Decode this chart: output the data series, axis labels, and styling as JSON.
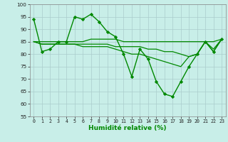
{
  "xlabel": "Humidité relative (%)",
  "bg_color": "#c8eee8",
  "grid_color": "#aacccc",
  "line_color": "#008800",
  "hours": [
    0,
    1,
    2,
    3,
    4,
    5,
    6,
    7,
    8,
    9,
    10,
    11,
    12,
    13,
    14,
    15,
    16,
    17,
    18,
    19,
    20,
    21,
    22,
    23
  ],
  "series_main": [
    94,
    81,
    82,
    85,
    85,
    95,
    94,
    96,
    93,
    89,
    87,
    80,
    71,
    82,
    78,
    69,
    64,
    63,
    69,
    75,
    80,
    85,
    81,
    86
  ],
  "series_avg1": [
    85,
    85,
    85,
    85,
    85,
    85,
    85,
    86,
    86,
    86,
    86,
    85,
    85,
    85,
    85,
    85,
    85,
    85,
    85,
    85,
    85,
    85,
    85,
    86
  ],
  "series_avg2": [
    85,
    84,
    84,
    84,
    84,
    84,
    84,
    84,
    84,
    84,
    83,
    83,
    83,
    83,
    82,
    82,
    81,
    81,
    80,
    79,
    80,
    85,
    82,
    86
  ],
  "series_avg3": [
    85,
    84,
    84,
    84,
    84,
    84,
    83,
    83,
    83,
    83,
    82,
    81,
    80,
    80,
    79,
    78,
    77,
    76,
    75,
    79,
    80,
    85,
    81,
    86
  ],
  "ylim": [
    55,
    100
  ],
  "yticks": [
    55,
    60,
    65,
    70,
    75,
    80,
    85,
    90,
    95,
    100
  ]
}
